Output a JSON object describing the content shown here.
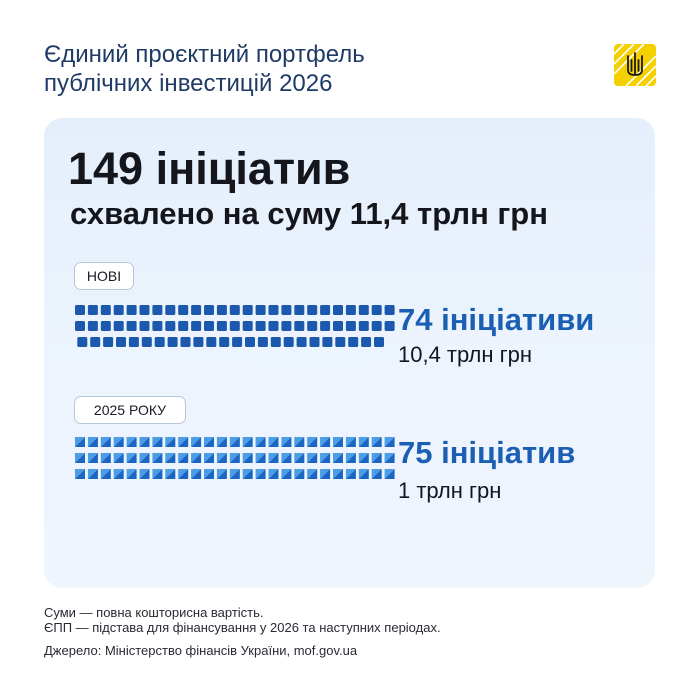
{
  "header": {
    "title_line1": "Єдиний проєктний портфель",
    "title_line2": "публічних інвестицій 2026"
  },
  "logo": {
    "icon": "ukraine-trident-icon",
    "color": "#f5d000"
  },
  "headline": {
    "line1": "149 ініціатив",
    "line2": "схвалено на суму 11,4 трлн грн"
  },
  "colors": {
    "accent": "#1b5fb5",
    "new_dot": "#1c58ad",
    "prev_dot_dark": "#1c65c2",
    "prev_dot_light": "#4a9de6",
    "card_bg": "#e6f0fc"
  },
  "chart_data": {
    "type": "unit",
    "series": [
      {
        "name": "НОВІ",
        "count": 74,
        "count_label": "74 ініціативи",
        "amount_label": "10,4 трлн грн",
        "amount_trln": 10.4
      },
      {
        "name": "2025 РОКУ",
        "count": 75,
        "count_label": "75 ініціатив",
        "amount_label": "1 трлн грн",
        "amount_trln": 1
      }
    ],
    "total_count": 149,
    "total_amount_trln": 11.4
  },
  "footer": {
    "note1": "Суми — повна кошторисна вартість.",
    "note2": "ЄПП — підстава для фінансування у 2026 та наступних періодах.",
    "source": "Джерело: Міністерство фінансів України, mof.gov.ua"
  }
}
